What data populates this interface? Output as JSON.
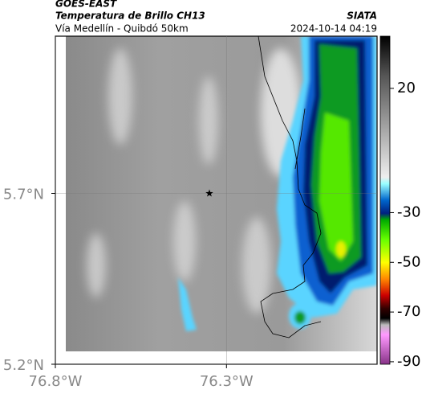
{
  "header": {
    "product": "GOES-EAST",
    "title": "Temperatura de Brillo CH13",
    "source": "SIATA",
    "subtitle": "Vía Medellín - Quibdó 50km",
    "datetime": "2024-10-14 04:19"
  },
  "map": {
    "xlim": [
      -76.8,
      -75.86
    ],
    "ylim": [
      5.2,
      6.16
    ],
    "xticks": [
      {
        "value": -76.8,
        "label": "76.8°W"
      },
      {
        "value": -76.3,
        "label": "76.3°W"
      }
    ],
    "yticks": [
      {
        "value": 5.7,
        "label": "5.7°N"
      },
      {
        "value": 5.2,
        "label": "5.2°N"
      }
    ],
    "grid": true,
    "marker": {
      "lon": -76.35,
      "lat": 5.7
    }
  },
  "colorbar": {
    "lim": [
      41,
      -91
    ],
    "ticks": [
      20,
      -30,
      -50,
      -70,
      -90
    ]
  }
}
